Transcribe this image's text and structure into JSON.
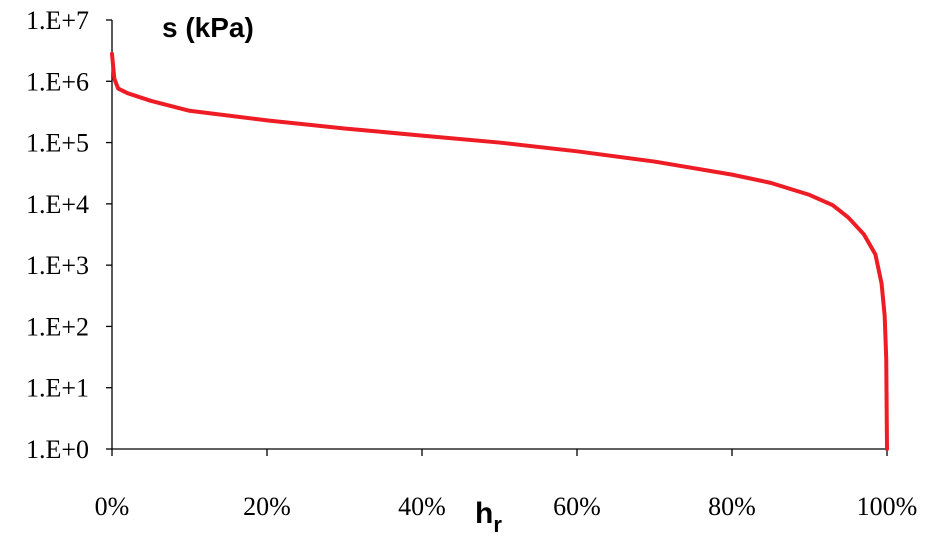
{
  "chart_data": {
    "type": "line",
    "title": "",
    "ylabel": "s (kPa)",
    "xlabel": "h",
    "xlabel_subscript": "r",
    "y_scale": "log",
    "ylim": [
      1,
      10000000
    ],
    "xlim": [
      0,
      100
    ],
    "y_ticks": [
      "1.E+0",
      "1.E+1",
      "1.E+2",
      "1.E+3",
      "1.E+4",
      "1.E+5",
      "1.E+6",
      "1.E+7"
    ],
    "x_ticks": [
      "0%",
      "20%",
      "40%",
      "60%",
      "80%",
      "100%"
    ],
    "grid": false,
    "legend": "none",
    "series": [
      {
        "color": "#ee1c25",
        "points": [
          {
            "x": 0.0,
            "y": 2800000
          },
          {
            "x": 0.3,
            "y": 1100000
          },
          {
            "x": 0.8,
            "y": 760000
          },
          {
            "x": 2,
            "y": 640000
          },
          {
            "x": 5,
            "y": 480000
          },
          {
            "x": 10,
            "y": 330000
          },
          {
            "x": 20,
            "y": 230000
          },
          {
            "x": 30,
            "y": 170000
          },
          {
            "x": 40,
            "y": 130000
          },
          {
            "x": 50,
            "y": 100000
          },
          {
            "x": 60,
            "y": 72000
          },
          {
            "x": 70,
            "y": 49000
          },
          {
            "x": 80,
            "y": 30000
          },
          {
            "x": 85,
            "y": 22000
          },
          {
            "x": 90,
            "y": 14000
          },
          {
            "x": 93,
            "y": 9500
          },
          {
            "x": 95,
            "y": 6000
          },
          {
            "x": 97,
            "y": 3200
          },
          {
            "x": 98.5,
            "y": 1500
          },
          {
            "x": 99.3,
            "y": 500
          },
          {
            "x": 99.7,
            "y": 150
          },
          {
            "x": 99.9,
            "y": 30
          },
          {
            "x": 100,
            "y": 1
          }
        ]
      }
    ]
  }
}
